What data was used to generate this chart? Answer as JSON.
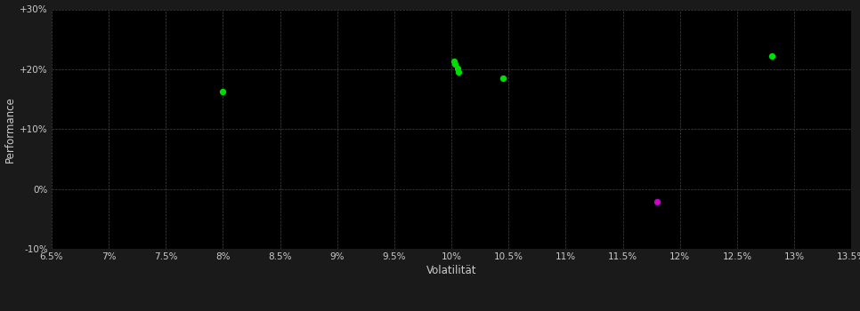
{
  "figure_bg_color": "#1a1a1a",
  "plot_bg_color": "#000000",
  "grid_color": "#444444",
  "text_color": "#cccccc",
  "xlabel": "Volatilität",
  "ylabel": "Performance",
  "xlim": [
    0.065,
    0.135
  ],
  "ylim": [
    -0.1,
    0.3
  ],
  "xticks": [
    0.065,
    0.07,
    0.075,
    0.08,
    0.085,
    0.09,
    0.095,
    0.1,
    0.105,
    0.11,
    0.115,
    0.12,
    0.125,
    0.13,
    0.135
  ],
  "yticks": [
    -0.1,
    0.0,
    0.1,
    0.2,
    0.3
  ],
  "ytick_labels": [
    "-10%",
    "0%",
    "+10%",
    "+20%",
    "+30%"
  ],
  "xtick_labels": [
    "6.5%",
    "7%",
    "7.5%",
    "8%",
    "8.5%",
    "9%",
    "9.5%",
    "10%",
    "10.5%",
    "11%",
    "11.5%",
    "12%",
    "12.5%",
    "13%",
    "13.5%"
  ],
  "points_green": [
    [
      0.08,
      0.163
    ],
    [
      0.1002,
      0.213
    ],
    [
      0.1003,
      0.208
    ],
    [
      0.1005,
      0.201
    ],
    [
      0.1006,
      0.195
    ],
    [
      0.1045,
      0.185
    ],
    [
      0.128,
      0.222
    ]
  ],
  "points_magenta": [
    [
      0.118,
      -0.022
    ]
  ],
  "green_color": "#00dd00",
  "magenta_color": "#cc00cc",
  "marker_size": 28,
  "figsize": [
    9.66,
    3.5
  ],
  "dpi": 100
}
